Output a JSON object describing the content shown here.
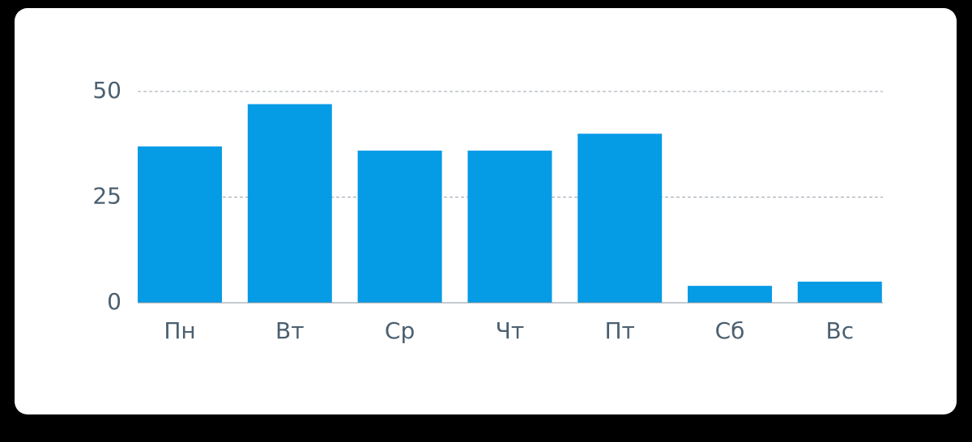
{
  "chart_data": {
    "type": "bar",
    "categories": [
      "Пн",
      "Вт",
      "Ср",
      "Чт",
      "Пт",
      "Сб",
      "Вс"
    ],
    "values": [
      37,
      47,
      36,
      36,
      40,
      4,
      5
    ],
    "color": "#069be5",
    "ylim": [
      0,
      50
    ],
    "yticks": [
      0,
      25,
      50
    ],
    "grid": true
  }
}
